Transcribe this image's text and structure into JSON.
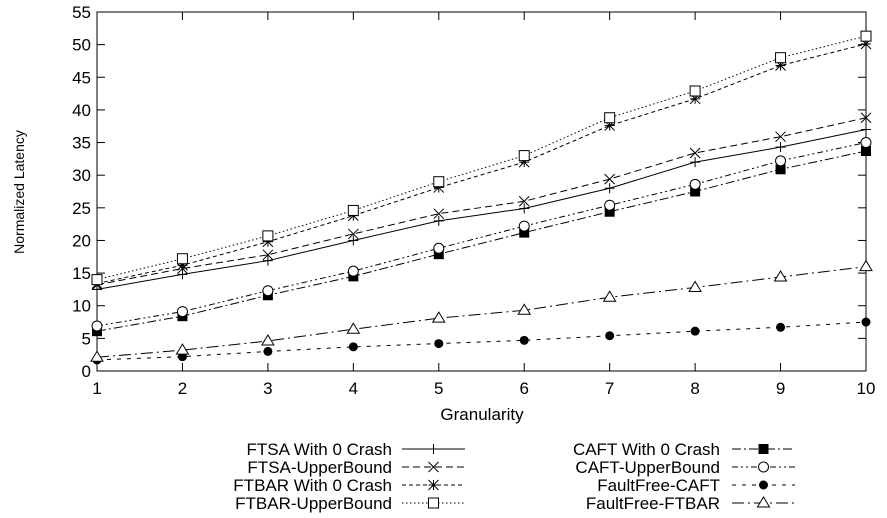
{
  "chart_data": {
    "type": "line",
    "title": "",
    "xlabel": "Granularity",
    "ylabel": "Normalized Latency",
    "xlim": [
      1,
      10
    ],
    "ylim": [
      0,
      55
    ],
    "x_ticks": [
      "1",
      "2",
      "3",
      "4",
      "5",
      "6",
      "7",
      "8",
      "9",
      "10"
    ],
    "y_ticks": [
      "0",
      "5",
      "10",
      "15",
      "20",
      "25",
      "30",
      "35",
      "40",
      "45",
      "50",
      "55"
    ],
    "grid": false,
    "legend_position": "bottom",
    "x": [
      1,
      2,
      3,
      4,
      5,
      6,
      7,
      8,
      9,
      10
    ],
    "series": [
      {
        "name": "FTSA With 0 Crash",
        "dash": "solid",
        "marker": "plus",
        "values": [
          12.5,
          14.8,
          16.9,
          20.0,
          23.0,
          24.9,
          28.0,
          32.0,
          34.3,
          37.0
        ]
      },
      {
        "name": "FTSA-UpperBound",
        "dash": "dashed",
        "marker": "x",
        "values": [
          13.2,
          15.7,
          17.8,
          21.0,
          24.1,
          26.0,
          29.4,
          33.4,
          35.9,
          38.8
        ]
      },
      {
        "name": "FTBAR With 0 Crash",
        "dash": "short-dashed",
        "marker": "asterisk",
        "values": [
          13.4,
          16.2,
          19.8,
          23.8,
          28.1,
          32.0,
          37.6,
          41.7,
          46.8,
          50.1
        ]
      },
      {
        "name": "FTBAR-UpperBound",
        "dash": "dotted",
        "marker": "open-square",
        "values": [
          14.0,
          17.2,
          20.7,
          24.6,
          29.0,
          33.0,
          38.8,
          42.9,
          48.0,
          51.3
        ]
      },
      {
        "name": "CAFT With 0 Crash",
        "dash": "dash-dot",
        "marker": "filled-square",
        "values": [
          6.1,
          8.4,
          11.6,
          14.5,
          17.9,
          21.2,
          24.4,
          27.5,
          30.9,
          33.7
        ]
      },
      {
        "name": "CAFT-UpperBound",
        "dash": "dash-dot-dot",
        "marker": "open-circle",
        "values": [
          6.9,
          9.1,
          12.3,
          15.3,
          18.8,
          22.2,
          25.4,
          28.6,
          32.2,
          35.0
        ]
      },
      {
        "name": "FaultFree-CAFT",
        "dash": "long-dashed",
        "marker": "filled-circle",
        "values": [
          1.7,
          2.2,
          3.0,
          3.7,
          4.2,
          4.7,
          5.4,
          6.1,
          6.7,
          7.5
        ]
      },
      {
        "name": "FaultFree-FTBAR",
        "dash": "long-dash-dot",
        "marker": "open-triangle",
        "values": [
          2.1,
          3.2,
          4.6,
          6.4,
          8.1,
          9.3,
          11.3,
          12.8,
          14.4,
          16.0
        ]
      }
    ]
  }
}
